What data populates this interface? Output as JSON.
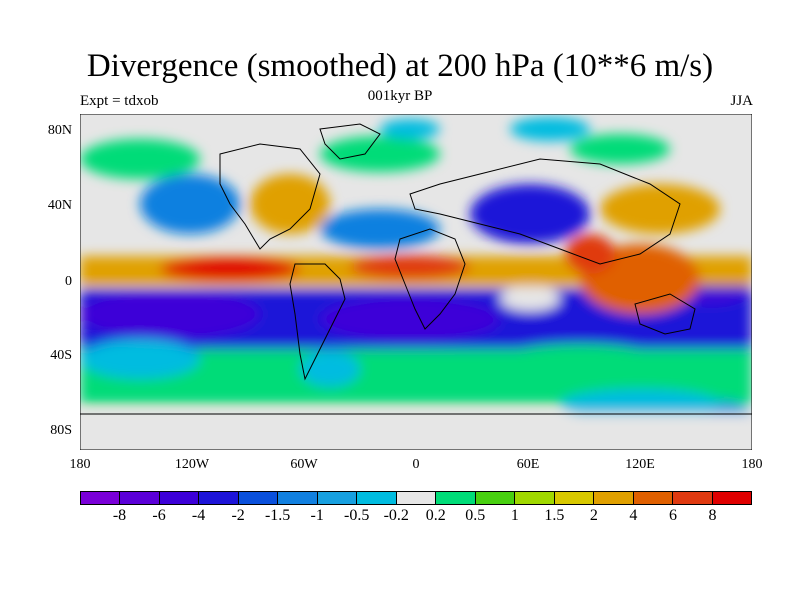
{
  "header": {
    "title": "Divergence (smoothed) at 200 hPa (10**6 m/s)",
    "left": "Expt = tdxob",
    "center": "001kyr BP",
    "right": "JJA"
  },
  "map": {
    "y_labels": [
      "80N",
      "40N",
      "0",
      "40S",
      "80S"
    ],
    "x_labels": [
      "180",
      "120W",
      "60W",
      "0",
      "60E",
      "120E",
      "180"
    ]
  },
  "colorbar": {
    "colors": [
      "#7a00d8",
      "#5b00d8",
      "#3c00d8",
      "#1d14d8",
      "#0a50dc",
      "#1180e0",
      "#17a0e0",
      "#00bce0",
      "#e6e6e6",
      "#00dc78",
      "#48d010",
      "#a0d800",
      "#d8c800",
      "#e0a000",
      "#e06000",
      "#e03a10",
      "#e00000"
    ],
    "labels": [
      "-8",
      "-6",
      "-4",
      "-2",
      "-1.5",
      "-1",
      "-0.5",
      "-0.2",
      "0.2",
      "0.5",
      "1",
      "1.5",
      "2",
      "4",
      "6",
      "8"
    ]
  }
}
